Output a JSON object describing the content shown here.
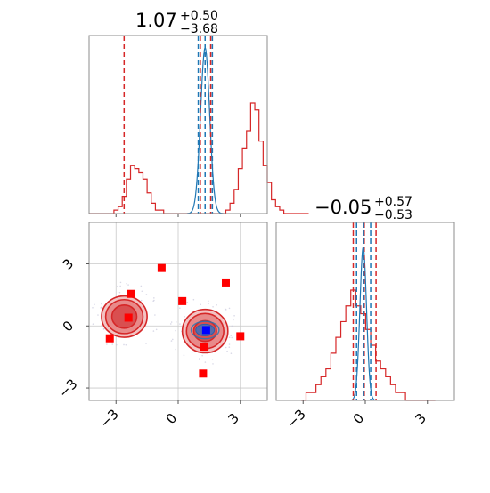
{
  "chart_data": {
    "type": "corner",
    "colors": {
      "truth": "#d62728",
      "fit": "#1f77b4",
      "marker_truth": "#ff0000",
      "marker_fit": "#0000ff",
      "frame": "#8c8c8c"
    },
    "panels": [
      {
        "id": "hist-param-1",
        "type": "histogram",
        "title": {
          "value": "1.07",
          "sup": "+0.50",
          "sub": "−3.68"
        },
        "xlim": [
          -4.3,
          4.3
        ],
        "xticks": [
          -3,
          0,
          3
        ],
        "red_hist": {
          "edges_start": -4.3,
          "bin_width": 0.2,
          "counts": [
            0,
            0,
            0,
            0,
            0,
            0,
            1,
            2,
            5,
            10,
            14,
            13,
            12,
            10,
            6,
            3,
            1,
            1,
            0,
            0,
            0,
            0,
            0,
            0,
            0,
            0,
            0,
            0,
            0,
            0,
            0,
            0,
            0,
            1,
            3,
            7,
            13,
            19,
            24,
            32,
            30,
            21,
            14,
            9,
            4,
            2,
            1,
            0,
            0,
            0,
            0,
            0,
            0
          ]
        },
        "blue_curve": {
          "center": 1.3,
          "sigma": 0.22,
          "peak_fraction": 0.93
        },
        "red_quantile_lines": [
          -2.61,
          1.57,
          1.07
        ],
        "blue_quantile_lines": [
          0.97,
          1.3,
          1.65
        ]
      },
      {
        "id": "hist-param-2",
        "type": "histogram",
        "title": {
          "value": "−0.05",
          "sup": "+0.57",
          "sub": "−0.53"
        },
        "xlim": [
          -4.3,
          4.3
        ],
        "xticks": [
          -3,
          0,
          3
        ],
        "red_hist": {
          "edges_start": -3.1,
          "bin_width": 0.24,
          "counts": [
            0,
            1,
            1,
            2,
            3,
            4,
            6,
            8,
            10,
            12,
            14,
            12,
            11,
            9,
            7,
            5,
            4,
            3,
            2,
            1,
            1,
            0,
            0,
            0,
            0,
            0,
            0
          ]
        },
        "blue_curve": {
          "center": -0.1,
          "sigma": 0.16,
          "peak_fraction": 0.86
        },
        "red_quantile_lines": [
          -0.58,
          -0.05,
          0.52
        ],
        "blue_quantile_lines": [
          -0.42,
          -0.08,
          0.26
        ]
      },
      {
        "id": "scatter-2d",
        "type": "contour",
        "xlim": [
          -4.3,
          4.3
        ],
        "ylim": [
          -3.6,
          5.0
        ],
        "xticks": [
          -3,
          0,
          3
        ],
        "yticks": [
          -3,
          0,
          3
        ],
        "clusters": [
          {
            "center": [
              -2.6,
              0.45
            ],
            "levels": [
              [
                1.1,
                1.0
              ],
              [
                0.9,
                0.82
              ],
              [
                0.6,
                0.56
              ]
            ]
          },
          {
            "center": [
              1.3,
              -0.25
            ],
            "levels": [
              [
                1.1,
                1.05
              ],
              [
                0.9,
                0.85
              ],
              [
                0.55,
                0.5
              ]
            ]
          }
        ],
        "blue_core": {
          "center": [
            1.3,
            -0.2
          ],
          "radius": [
            0.45,
            0.28
          ]
        },
        "red_points": [
          [
            -2.3,
            1.55
          ],
          [
            -0.8,
            2.8
          ],
          [
            0.2,
            1.2
          ],
          [
            2.3,
            2.1
          ],
          [
            -2.4,
            0.4
          ],
          [
            -3.3,
            -0.6
          ],
          [
            1.25,
            -1.0
          ],
          [
            3.0,
            -0.5
          ],
          [
            1.2,
            -2.3
          ]
        ],
        "blue_point": [
          1.35,
          -0.2
        ]
      }
    ]
  }
}
